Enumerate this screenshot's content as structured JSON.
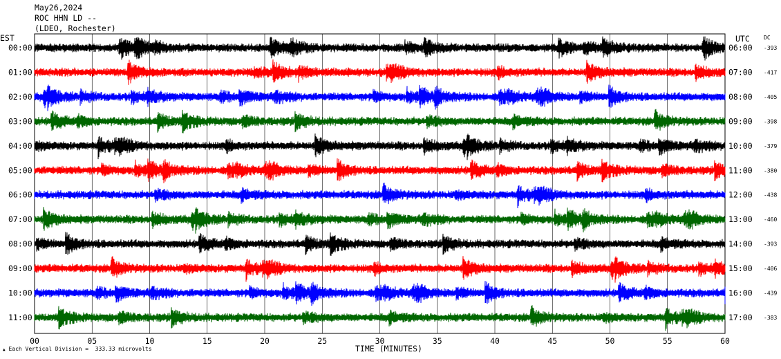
{
  "header": {
    "date": "May26,2024",
    "station": "ROC HHN LD --",
    "location": "(LDEO, Rochester)"
  },
  "left_tz": "EST",
  "right_tz": "UTC",
  "dc_header": "DC",
  "footer": {
    "mark": "▲",
    "scale_note": "Each Vertical Division =  333.33 microvolts"
  },
  "colors": {
    "trace_cycle": [
      "#000000",
      "#ff0000",
      "#0000ff",
      "#006600"
    ],
    "grid": "#000000"
  },
  "chart_data": {
    "type": "line",
    "title": "",
    "xlabel": "TIME (MINUTES)",
    "ylabel": "",
    "xlim": [
      0,
      60
    ],
    "x_ticks": [
      "00",
      "05",
      "10",
      "15",
      "20",
      "25",
      "30",
      "35",
      "40",
      "45",
      "50",
      "55",
      "60"
    ],
    "grid": true,
    "rows": [
      {
        "est": "00:00",
        "utc": "06:00",
        "dc": "-393"
      },
      {
        "est": "01:00",
        "utc": "07:00",
        "dc": "-417"
      },
      {
        "est": "02:00",
        "utc": "08:00",
        "dc": "-405"
      },
      {
        "est": "03:00",
        "utc": "09:00",
        "dc": "-398"
      },
      {
        "est": "04:00",
        "utc": "10:00",
        "dc": "-379"
      },
      {
        "est": "05:00",
        "utc": "11:00",
        "dc": "-380"
      },
      {
        "est": "06:00",
        "utc": "12:00",
        "dc": "-438"
      },
      {
        "est": "07:00",
        "utc": "13:00",
        "dc": "-460"
      },
      {
        "est": "08:00",
        "utc": "14:00",
        "dc": "-393"
      },
      {
        "est": "09:00",
        "utc": "15:00",
        "dc": "-406"
      },
      {
        "est": "10:00",
        "utc": "16:00",
        "dc": "-439"
      },
      {
        "est": "11:00",
        "utc": "17:00",
        "dc": "-383"
      }
    ]
  }
}
